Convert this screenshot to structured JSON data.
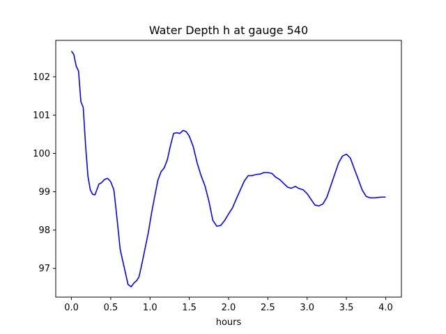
{
  "chart_data": {
    "type": "line",
    "title": "Water Depth h at gauge 540",
    "xlabel": "hours",
    "ylabel": "",
    "xlim": [
      -0.2,
      4.2
    ],
    "ylim": [
      96.25,
      102.95
    ],
    "xticks": [
      0.0,
      0.5,
      1.0,
      1.5,
      2.0,
      2.5,
      3.0,
      3.5,
      4.0
    ],
    "xtick_labels": [
      "0.0",
      "0.5",
      "1.0",
      "1.5",
      "2.0",
      "2.5",
      "3.0",
      "3.5",
      "4.0"
    ],
    "yticks": [
      97,
      98,
      99,
      100,
      101,
      102
    ],
    "ytick_labels": [
      "97",
      "98",
      "99",
      "100",
      "101",
      "102"
    ],
    "grid": false,
    "series": [
      {
        "color": "#0000ff",
        "x": [
          0.0,
          0.03,
          0.06,
          0.09,
          0.12,
          0.15,
          0.18,
          0.21,
          0.24,
          0.27,
          0.3,
          0.35,
          0.38,
          0.42,
          0.46,
          0.5,
          0.54,
          0.58,
          0.62,
          0.65,
          0.68,
          0.72,
          0.76,
          0.8,
          0.83,
          0.86,
          0.9,
          0.94,
          0.98,
          1.02,
          1.06,
          1.1,
          1.14,
          1.18,
          1.22,
          1.26,
          1.3,
          1.34,
          1.38,
          1.42,
          1.46,
          1.5,
          1.55,
          1.6,
          1.65,
          1.7,
          1.75,
          1.8,
          1.85,
          1.9,
          1.95,
          2.0,
          2.05,
          2.1,
          2.15,
          2.2,
          2.25,
          2.3,
          2.35,
          2.4,
          2.45,
          2.5,
          2.55,
          2.6,
          2.65,
          2.7,
          2.75,
          2.8,
          2.85,
          2.9,
          2.95,
          3.0,
          3.05,
          3.1,
          3.15,
          3.2,
          3.25,
          3.3,
          3.35,
          3.4,
          3.45,
          3.5,
          3.55,
          3.6,
          3.65,
          3.7,
          3.75,
          3.8,
          3.85,
          3.9,
          3.95,
          4.0
        ],
        "y": [
          102.67,
          102.58,
          102.28,
          102.15,
          101.35,
          101.2,
          100.2,
          99.4,
          99.05,
          98.93,
          98.92,
          99.2,
          99.23,
          99.32,
          99.35,
          99.26,
          99.05,
          98.3,
          97.5,
          97.22,
          96.95,
          96.58,
          96.52,
          96.63,
          96.68,
          96.78,
          97.15,
          97.55,
          97.95,
          98.45,
          98.88,
          99.3,
          99.52,
          99.62,
          99.83,
          100.2,
          100.52,
          100.54,
          100.52,
          100.6,
          100.57,
          100.45,
          100.18,
          99.75,
          99.42,
          99.15,
          98.75,
          98.25,
          98.1,
          98.12,
          98.25,
          98.42,
          98.58,
          98.82,
          99.05,
          99.28,
          99.42,
          99.42,
          99.45,
          99.46,
          99.5,
          99.5,
          99.48,
          99.38,
          99.32,
          99.22,
          99.12,
          99.09,
          99.14,
          99.08,
          99.05,
          98.95,
          98.8,
          98.65,
          98.63,
          98.68,
          98.85,
          99.15,
          99.45,
          99.75,
          99.93,
          99.98,
          99.88,
          99.6,
          99.33,
          99.05,
          98.88,
          98.84,
          98.84,
          98.85,
          98.86,
          98.86
        ]
      }
    ]
  }
}
